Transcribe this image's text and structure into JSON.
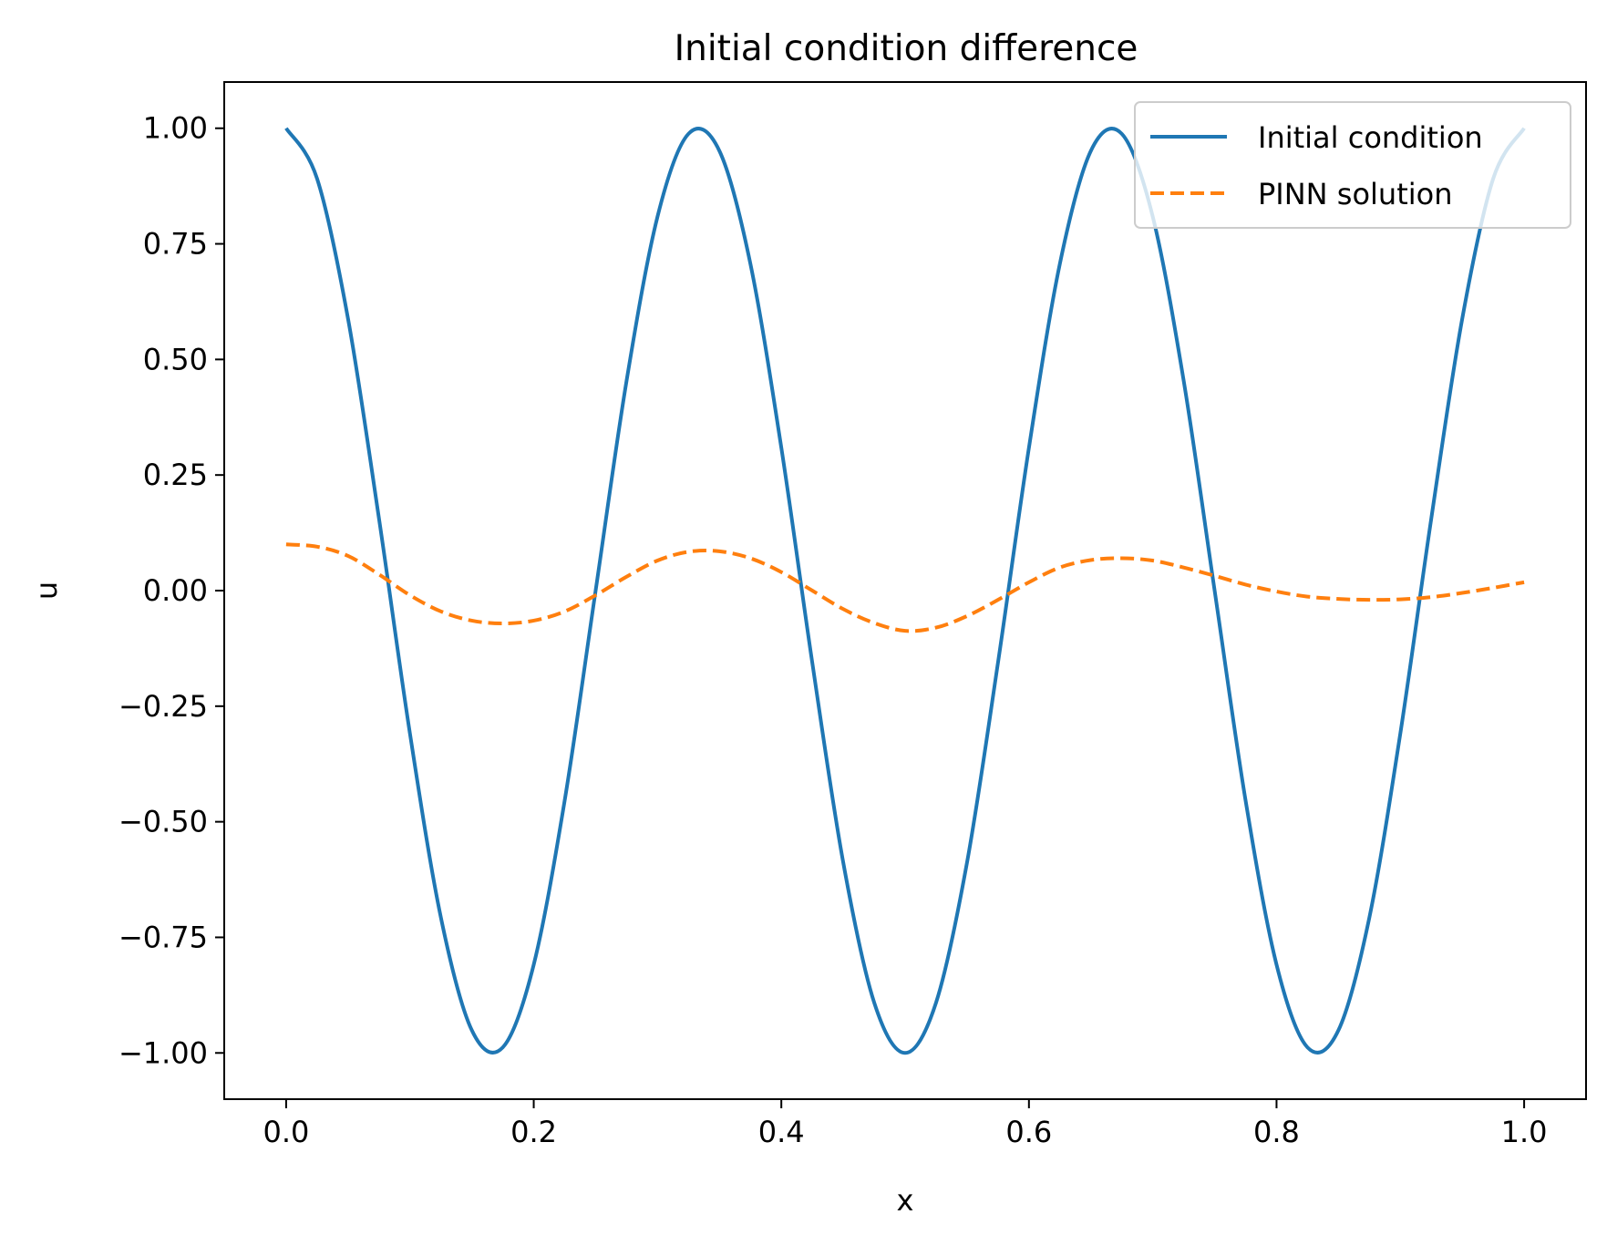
{
  "chart_data": {
    "type": "line",
    "title": "Initial condition difference",
    "xlabel": "x",
    "ylabel": "u",
    "xlim": [
      -0.05,
      1.05
    ],
    "ylim": [
      -1.1,
      1.1
    ],
    "xticks": [
      0.0,
      0.2,
      0.4,
      0.6,
      0.8,
      1.0
    ],
    "xtick_labels": [
      "0.0",
      "0.2",
      "0.4",
      "0.6",
      "0.8",
      "1.0"
    ],
    "yticks": [
      1.0,
      0.75,
      0.5,
      0.25,
      0.0,
      -0.25,
      -0.5,
      -0.75,
      -1.0
    ],
    "ytick_labels": [
      "1.00",
      "0.75",
      "0.50",
      "0.25",
      "0.00",
      "−0.25",
      "−0.50",
      "−0.75",
      "−1.00"
    ],
    "grid": false,
    "legend_position": "upper right",
    "x": [
      0.0,
      0.025,
      0.05,
      0.075,
      0.1,
      0.125,
      0.15,
      0.175,
      0.2,
      0.225,
      0.25,
      0.275,
      0.3,
      0.325,
      0.35,
      0.375,
      0.4,
      0.425,
      0.45,
      0.475,
      0.5,
      0.525,
      0.55,
      0.575,
      0.6,
      0.625,
      0.65,
      0.675,
      0.7,
      0.725,
      0.75,
      0.775,
      0.8,
      0.825,
      0.85,
      0.875,
      0.9,
      0.925,
      0.95,
      0.975,
      1.0
    ],
    "series": [
      {
        "name": "Initial condition",
        "color": "#1f77b4",
        "linestyle": "solid",
        "values": [
          1.0,
          0.891,
          0.588,
          0.156,
          -0.309,
          -0.707,
          -0.951,
          -0.988,
          -0.809,
          -0.454,
          0.0,
          0.454,
          0.809,
          0.988,
          0.951,
          0.707,
          0.309,
          -0.156,
          -0.588,
          -0.891,
          -1.0,
          -0.891,
          -0.588,
          -0.156,
          0.309,
          0.707,
          0.951,
          0.988,
          0.809,
          0.454,
          0.0,
          -0.454,
          -0.809,
          -0.988,
          -0.951,
          -0.707,
          -0.309,
          0.156,
          0.588,
          0.891,
          1.0
        ]
      },
      {
        "name": "PINN solution",
        "color": "#ff7f0e",
        "linestyle": "dashed",
        "values": [
          0.1,
          0.095,
          0.075,
          0.035,
          -0.01,
          -0.045,
          -0.065,
          -0.071,
          -0.065,
          -0.045,
          -0.01,
          0.03,
          0.065,
          0.084,
          0.085,
          0.07,
          0.04,
          0.0,
          -0.04,
          -0.07,
          -0.087,
          -0.08,
          -0.055,
          -0.02,
          0.018,
          0.05,
          0.066,
          0.07,
          0.065,
          0.05,
          0.032,
          0.013,
          -0.002,
          -0.013,
          -0.018,
          -0.02,
          -0.019,
          -0.014,
          -0.005,
          0.006,
          0.018
        ]
      }
    ]
  }
}
